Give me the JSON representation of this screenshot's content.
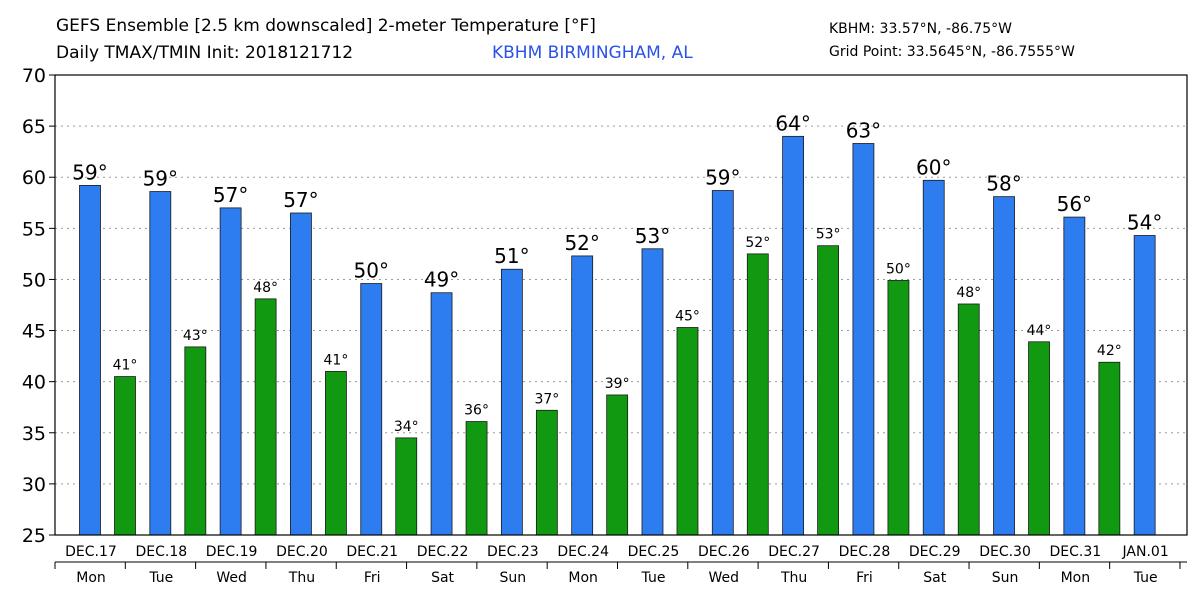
{
  "header": {
    "title": "GEFS Ensemble [2.5 km downscaled] 2-meter Temperature [°F]",
    "subtitle": "Daily TMAX/TMIN Init: 2018121712",
    "location": "KBHM BIRMINGHAM, AL",
    "station": "KBHM: 33.57°N, -86.75°W",
    "grid_point": "Grid Point: 33.5645°N, -86.7555°W"
  },
  "colors": {
    "tmax": "#2e7df0",
    "tmin": "#119a11",
    "location": "#2a52e8"
  },
  "chart_data": {
    "type": "bar",
    "ylim": [
      25,
      70
    ],
    "yticks": [
      25,
      30,
      35,
      40,
      45,
      50,
      55,
      60,
      65,
      70
    ],
    "grid": true,
    "dates": [
      "DEC.17",
      "DEC.18",
      "DEC.19",
      "DEC.20",
      "DEC.21",
      "DEC.22",
      "DEC.23",
      "DEC.24",
      "DEC.25",
      "DEC.26",
      "DEC.27",
      "DEC.28",
      "DEC.29",
      "DEC.30",
      "DEC.31",
      "JAN.01"
    ],
    "weekdays": [
      "Mon",
      "Tue",
      "Wed",
      "Thu",
      "Fri",
      "Sat",
      "Sun",
      "Mon",
      "Tue",
      "Wed",
      "Thu",
      "Fri",
      "Sat",
      "Sun",
      "Mon",
      "Tue"
    ],
    "series": [
      {
        "key": "tmax",
        "values": [
          59.2,
          58.6,
          57.0,
          56.5,
          49.6,
          48.7,
          51.0,
          52.3,
          53.0,
          58.7,
          64.0,
          63.3,
          59.7,
          58.1,
          56.1,
          54.3
        ],
        "labels": [
          "59°",
          "59°",
          "57°",
          "57°",
          "50°",
          "49°",
          "51°",
          "52°",
          "53°",
          "59°",
          "64°",
          "63°",
          "60°",
          "58°",
          "56°",
          "54°"
        ]
      },
      {
        "key": "tmin",
        "values": [
          40.5,
          43.4,
          48.1,
          41.0,
          34.5,
          36.1,
          37.2,
          38.7,
          45.3,
          52.5,
          53.3,
          49.9,
          47.6,
          43.9,
          41.9,
          null
        ],
        "labels": [
          "41°",
          "43°",
          "48°",
          "41°",
          "34°",
          "36°",
          "37°",
          "39°",
          "45°",
          "52°",
          "53°",
          "50°",
          "48°",
          "44°",
          "42°",
          ""
        ]
      }
    ]
  }
}
